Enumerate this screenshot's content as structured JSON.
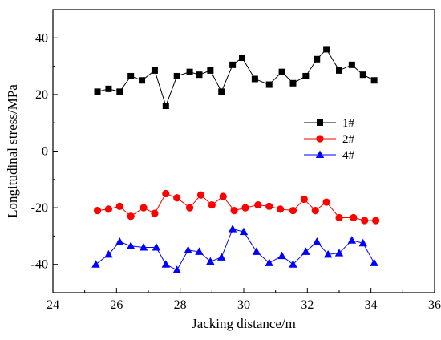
{
  "chart_data": {
    "type": "line",
    "xlabel": "Jacking distance/m",
    "ylabel": "Longitudinal stress/MPa",
    "xlim": [
      24,
      36
    ],
    "ylim": [
      -50,
      50
    ],
    "x_ticks": [
      24,
      26,
      28,
      30,
      32,
      34,
      36
    ],
    "y_ticks": [
      -40,
      -20,
      0,
      20,
      40
    ],
    "x_tick_labels": [
      "24",
      "26",
      "28",
      "30",
      "32",
      "34",
      "36"
    ],
    "y_tick_labels": [
      "-40",
      "-20",
      "0",
      "20",
      "40"
    ],
    "legend_position": "right",
    "grid": false,
    "series": [
      {
        "name": "1#",
        "color": "#000000",
        "marker": "square",
        "x": [
          25.4,
          25.75,
          26.1,
          26.45,
          26.8,
          27.2,
          27.55,
          27.9,
          28.3,
          28.6,
          28.95,
          29.3,
          29.65,
          29.95,
          30.35,
          30.8,
          31.2,
          31.55,
          31.95,
          32.3,
          32.6,
          33.0,
          33.4,
          33.75,
          34.1
        ],
        "y": [
          21,
          22,
          21,
          26.5,
          25,
          28.5,
          16,
          26.5,
          28,
          27,
          28.5,
          21,
          30.5,
          33,
          25.5,
          23.5,
          28,
          24,
          26.5,
          32.5,
          36,
          28.5,
          30.5,
          27,
          25
        ]
      },
      {
        "name": "2#",
        "color": "#ff0000",
        "marker": "circle",
        "x": [
          25.4,
          25.75,
          26.1,
          26.45,
          26.85,
          27.2,
          27.55,
          27.9,
          28.3,
          28.65,
          29.0,
          29.35,
          29.7,
          30.05,
          30.45,
          30.8,
          31.15,
          31.55,
          31.9,
          32.25,
          32.6,
          33.0,
          33.45,
          33.8,
          34.15
        ],
        "y": [
          -21,
          -20.5,
          -19.5,
          -23,
          -20,
          -22,
          -15,
          -16.5,
          -20,
          -15.5,
          -19,
          -16,
          -21,
          -20,
          -19,
          -19.5,
          -20.5,
          -21,
          -17,
          -21,
          -18,
          -23.5,
          -23.5,
          -24.5,
          -24.5
        ]
      },
      {
        "name": "4#",
        "color": "#0000ff",
        "marker": "triangle",
        "x": [
          25.35,
          25.75,
          26.1,
          26.45,
          26.85,
          27.25,
          27.55,
          27.9,
          28.25,
          28.6,
          28.95,
          29.3,
          29.65,
          30.0,
          30.4,
          30.8,
          31.2,
          31.55,
          31.95,
          32.3,
          32.65,
          33.0,
          33.4,
          33.75,
          34.1
        ],
        "y": [
          -40,
          -36.5,
          -32,
          -33.5,
          -34,
          -34,
          -40,
          -42,
          -35,
          -35.5,
          -39,
          -37.5,
          -27.5,
          -28.5,
          -35.5,
          -39.5,
          -37,
          -40,
          -35.5,
          -32,
          -36.5,
          -36,
          -31.5,
          -32.5,
          -39.5
        ]
      }
    ]
  }
}
